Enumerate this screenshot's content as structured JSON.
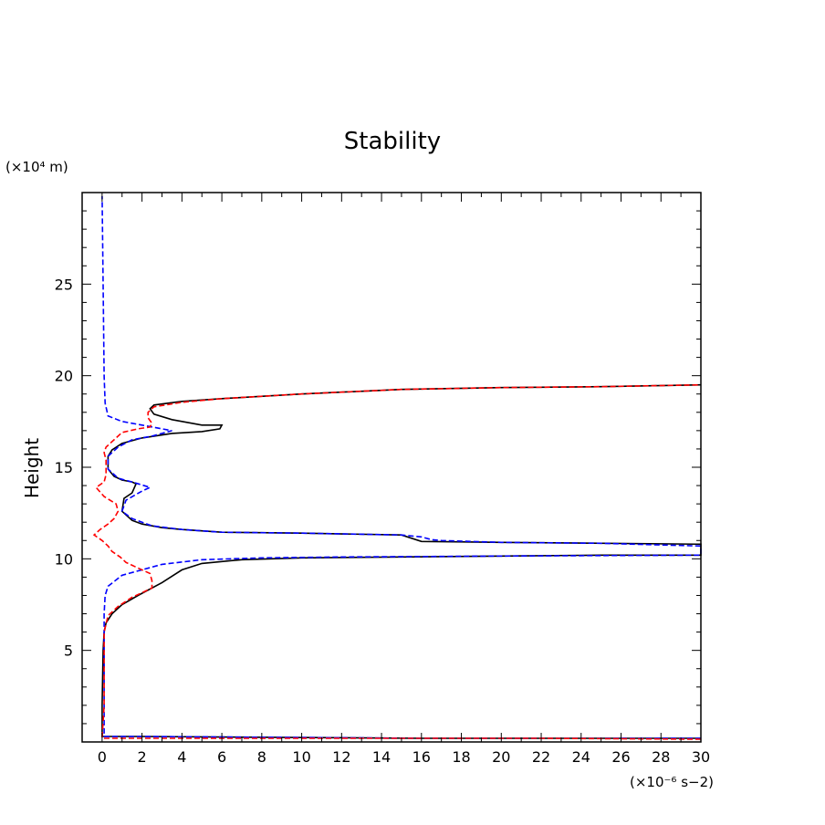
{
  "chart_data": {
    "type": "line",
    "title": "Stability",
    "ylabel": "Height",
    "y_unit": "(×10⁴ m)",
    "x_unit": "(×10⁻⁶ s−2)",
    "xlim": [
      -1,
      30
    ],
    "ylim": [
      0,
      30
    ],
    "x_ticks": [
      0,
      2,
      4,
      6,
      8,
      10,
      12,
      14,
      16,
      18,
      20,
      22,
      24,
      26,
      28,
      30
    ],
    "y_ticks": [
      5,
      10,
      15,
      20,
      25
    ],
    "grid": false,
    "legend": "none",
    "series": [
      {
        "color": "#000000",
        "dash": "solid",
        "points": [
          [
            30,
            0.2
          ],
          [
            16,
            0.2
          ],
          [
            2,
            0.3
          ],
          [
            0,
            0.3
          ],
          [
            0,
            2
          ],
          [
            0.05,
            5
          ],
          [
            0.1,
            6
          ],
          [
            0.2,
            6.5
          ],
          [
            0.5,
            7.0
          ],
          [
            1.0,
            7.5
          ],
          [
            1.8,
            8.0
          ],
          [
            3.0,
            8.7
          ],
          [
            4.0,
            9.4
          ],
          [
            5.0,
            9.75
          ],
          [
            7.0,
            9.95
          ],
          [
            10,
            10.05
          ],
          [
            15,
            10.1
          ],
          [
            20,
            10.15
          ],
          [
            25,
            10.2
          ],
          [
            30,
            10.2
          ],
          [
            30,
            10.8
          ],
          [
            20,
            10.9
          ],
          [
            16,
            10.95
          ],
          [
            15,
            11.3
          ],
          [
            10,
            11.4
          ],
          [
            6,
            11.45
          ],
          [
            4,
            11.6
          ],
          [
            3,
            11.7
          ],
          [
            2,
            11.9
          ],
          [
            1.5,
            12.1
          ],
          [
            1.0,
            12.6
          ],
          [
            1.1,
            13.3
          ],
          [
            1.5,
            13.6
          ],
          [
            1.7,
            14.1
          ],
          [
            1.5,
            14.2
          ],
          [
            1.0,
            14.3
          ],
          [
            0.6,
            14.5
          ],
          [
            0.3,
            14.9
          ],
          [
            0.3,
            15.6
          ],
          [
            0.5,
            15.95
          ],
          [
            1.0,
            16.3
          ],
          [
            2.0,
            16.6
          ],
          [
            3.5,
            16.85
          ],
          [
            5.0,
            16.95
          ],
          [
            5.9,
            17.1
          ],
          [
            6.0,
            17.3
          ],
          [
            5.0,
            17.3
          ],
          [
            3.5,
            17.6
          ],
          [
            2.6,
            17.9
          ],
          [
            2.4,
            18.2
          ],
          [
            2.6,
            18.4
          ],
          [
            4.0,
            18.6
          ],
          [
            6.0,
            18.75
          ],
          [
            10,
            19.0
          ],
          [
            15,
            19.25
          ],
          [
            20,
            19.35
          ],
          [
            25,
            19.4
          ],
          [
            30,
            19.5
          ]
        ]
      },
      {
        "color": "#0000ff",
        "dash": "dashed",
        "points": [
          [
            30,
            0.2
          ],
          [
            16,
            0.2
          ],
          [
            2,
            0.3
          ],
          [
            0.1,
            0.3
          ],
          [
            0.1,
            2
          ],
          [
            0.1,
            7
          ],
          [
            0.15,
            8
          ],
          [
            0.3,
            8.5
          ],
          [
            1.0,
            9.1
          ],
          [
            3.0,
            9.7
          ],
          [
            5,
            9.95
          ],
          [
            8,
            10.05
          ],
          [
            12,
            10.1
          ],
          [
            20,
            10.15
          ],
          [
            30,
            10.2
          ],
          [
            30,
            10.7
          ],
          [
            25,
            10.85
          ],
          [
            20,
            10.9
          ],
          [
            17,
            11.0
          ],
          [
            16.5,
            11.05
          ],
          [
            16,
            11.2
          ],
          [
            15,
            11.3
          ],
          [
            10,
            11.4
          ],
          [
            6,
            11.45
          ],
          [
            4,
            11.6
          ],
          [
            2.5,
            11.8
          ],
          [
            1.5,
            12.2
          ],
          [
            1.0,
            12.6
          ],
          [
            1.2,
            13.2
          ],
          [
            2.0,
            13.7
          ],
          [
            2.4,
            13.9
          ],
          [
            1.5,
            14.2
          ],
          [
            0.8,
            14.4
          ],
          [
            0.3,
            14.9
          ],
          [
            0.3,
            15.6
          ],
          [
            0.8,
            16.1
          ],
          [
            1.5,
            16.5
          ],
          [
            2.5,
            16.7
          ],
          [
            3.5,
            17.0
          ],
          [
            3.0,
            17.1
          ],
          [
            2.0,
            17.3
          ],
          [
            1.0,
            17.5
          ],
          [
            0.3,
            17.8
          ],
          [
            0.15,
            18.5
          ],
          [
            0.1,
            20
          ],
          [
            0.05,
            25
          ],
          [
            0,
            29.8
          ]
        ]
      },
      {
        "color": "#ff0000",
        "dash": "dashed",
        "points": [
          [
            30,
            0.15
          ],
          [
            22,
            0.2
          ],
          [
            10,
            0.2
          ],
          [
            2,
            0.2
          ],
          [
            0,
            0.2
          ],
          [
            0.1,
            2
          ],
          [
            0.1,
            6
          ],
          [
            0.3,
            6.9
          ],
          [
            0.8,
            7.4
          ],
          [
            1.5,
            7.9
          ],
          [
            2.5,
            8.4
          ],
          [
            2.5,
            8.8
          ],
          [
            2.4,
            9.2
          ],
          [
            1.8,
            9.5
          ],
          [
            1.2,
            9.8
          ],
          [
            0.9,
            10.1
          ],
          [
            0.5,
            10.4
          ],
          [
            0.3,
            10.7
          ],
          [
            0,
            11.0
          ],
          [
            -0.4,
            11.3
          ],
          [
            -0.1,
            11.6
          ],
          [
            0.3,
            11.9
          ],
          [
            0.6,
            12.2
          ],
          [
            0.8,
            12.6
          ],
          [
            0.7,
            13.0
          ],
          [
            0.1,
            13.4
          ],
          [
            -0.3,
            13.9
          ],
          [
            0.1,
            14.2
          ],
          [
            0.2,
            14.6
          ],
          [
            0.2,
            15.4
          ],
          [
            0.1,
            15.8
          ],
          [
            0.2,
            16.1
          ],
          [
            0.6,
            16.5
          ],
          [
            1.0,
            16.9
          ],
          [
            1.8,
            17.1
          ],
          [
            2.4,
            17.2
          ],
          [
            2.5,
            17.4
          ],
          [
            2.3,
            17.7
          ],
          [
            2.3,
            18.0
          ],
          [
            2.6,
            18.3
          ],
          [
            4.0,
            18.55
          ],
          [
            6.0,
            18.75
          ],
          [
            10,
            19.0
          ],
          [
            15,
            19.25
          ],
          [
            20,
            19.35
          ],
          [
            25,
            19.4
          ],
          [
            30,
            19.5
          ]
        ]
      }
    ]
  }
}
